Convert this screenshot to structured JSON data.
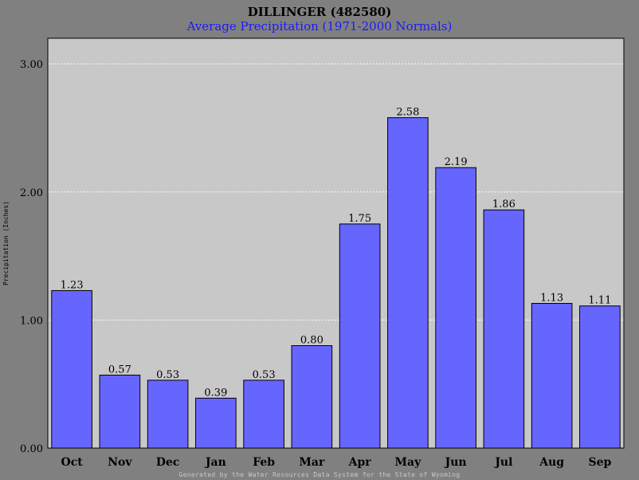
{
  "header": {
    "title": "DILLINGER (482580)",
    "subtitle": "Average Precipitation (1971-2000 Normals)"
  },
  "footer": {
    "text": "Generated by the Water Resources Data System for the State of Wyoming"
  },
  "colors": {
    "background": "#808080",
    "plot_area": "#c8c8c8",
    "bar_fill": "#6666ff",
    "subtitle": "#1a1aff",
    "gridline": "#ffffff"
  },
  "chart_data": {
    "type": "bar",
    "title": "DILLINGER (482580)",
    "subtitle": "Average Precipitation (1971-2000 Normals)",
    "xlabel": "",
    "ylabel": "Precipitation (Inches)",
    "categories": [
      "Oct",
      "Nov",
      "Dec",
      "Jan",
      "Feb",
      "Mar",
      "Apr",
      "May",
      "Jun",
      "Jul",
      "Aug",
      "Sep"
    ],
    "values": [
      1.23,
      0.57,
      0.53,
      0.39,
      0.53,
      0.8,
      1.75,
      2.58,
      2.19,
      1.86,
      1.13,
      1.11
    ],
    "value_labels": [
      "1.23",
      "0.57",
      "0.53",
      "0.39",
      "0.53",
      "0.80",
      "1.75",
      "2.58",
      "2.19",
      "1.86",
      "1.13",
      "1.11"
    ],
    "yticks": [
      0,
      1,
      2,
      3
    ],
    "ytick_labels": [
      "0.00",
      "1.00",
      "2.00",
      "3.00"
    ],
    "ylim": [
      0,
      3.2
    ],
    "grid": true,
    "legend": "none"
  }
}
